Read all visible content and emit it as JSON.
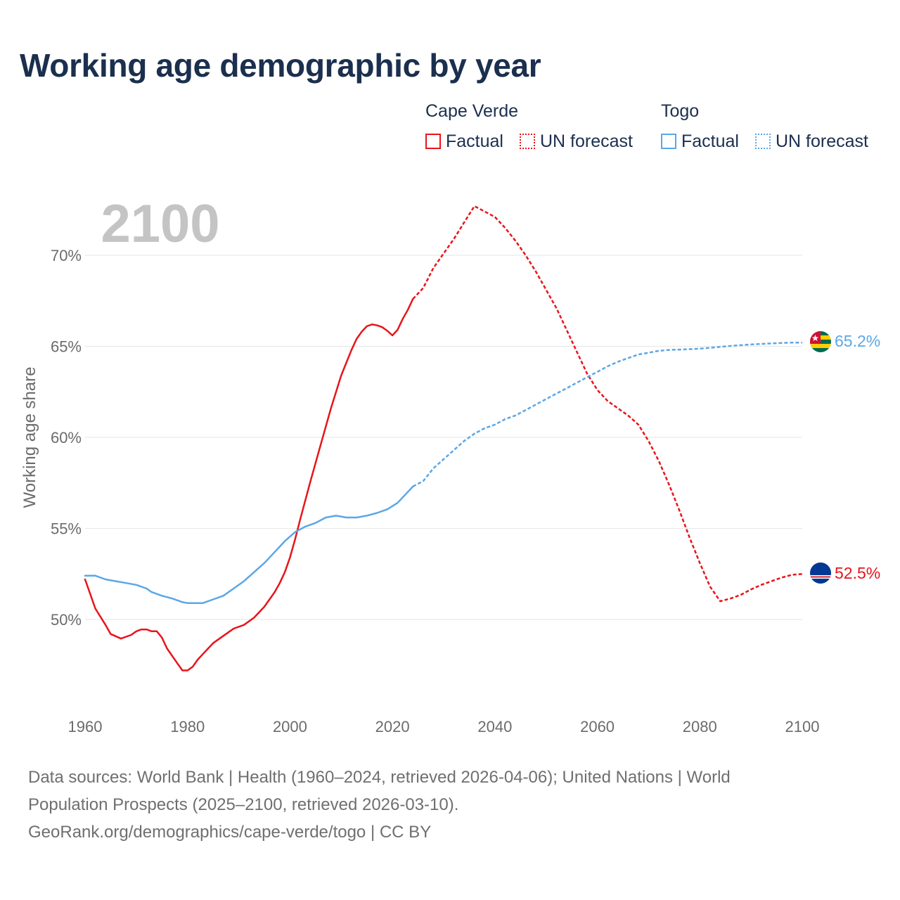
{
  "title": "Working age demographic by year",
  "legend": {
    "groups": [
      {
        "name": "Cape Verde",
        "color": "#e8141b",
        "items": [
          {
            "label": "Factual",
            "style": "solid"
          },
          {
            "label": "UN forecast",
            "style": "dotted"
          }
        ]
      },
      {
        "name": "Togo",
        "color": "#5ba7e6",
        "items": [
          {
            "label": "Factual",
            "style": "solid"
          },
          {
            "label": "UN forecast",
            "style": "dotted"
          }
        ]
      }
    ]
  },
  "chart_data": {
    "type": "line",
    "year_label": "2100",
    "ylabel": "Working age share",
    "xlim": [
      1960,
      2100
    ],
    "ylim": [
      45,
      74
    ],
    "x_ticks": [
      "1960",
      "1980",
      "2000",
      "2020",
      "2040",
      "2060",
      "2080",
      "2100"
    ],
    "y_ticks": [
      {
        "value": 50,
        "label": "50%"
      },
      {
        "value": 55,
        "label": "55%"
      },
      {
        "value": 60,
        "label": "60%"
      },
      {
        "value": 65,
        "label": "65%"
      },
      {
        "value": 70,
        "label": "70%"
      }
    ],
    "forecast_start": 2024,
    "series": [
      {
        "name": "Cape Verde",
        "color": "#e8141b",
        "flag": "cape-verde-flag-icon",
        "end_label": "52.5%",
        "points": [
          [
            1960,
            52.2
          ],
          [
            1962,
            50.6
          ],
          [
            1964,
            49.7
          ],
          [
            1965,
            49.2
          ],
          [
            1967,
            48.95
          ],
          [
            1969,
            49.15
          ],
          [
            1970,
            49.35
          ],
          [
            1971,
            49.45
          ],
          [
            1972,
            49.45
          ],
          [
            1973,
            49.35
          ],
          [
            1974,
            49.35
          ],
          [
            1975,
            49.0
          ],
          [
            1976,
            48.4
          ],
          [
            1978,
            47.6
          ],
          [
            1979,
            47.2
          ],
          [
            1980,
            47.2
          ],
          [
            1981,
            47.4
          ],
          [
            1982,
            47.8
          ],
          [
            1983,
            48.1
          ],
          [
            1984,
            48.4
          ],
          [
            1985,
            48.7
          ],
          [
            1987,
            49.1
          ],
          [
            1989,
            49.5
          ],
          [
            1991,
            49.7
          ],
          [
            1993,
            50.1
          ],
          [
            1995,
            50.7
          ],
          [
            1997,
            51.5
          ],
          [
            1998,
            52.0
          ],
          [
            1999,
            52.6
          ],
          [
            2000,
            53.4
          ],
          [
            2001,
            54.4
          ],
          [
            2002,
            55.5
          ],
          [
            2004,
            57.6
          ],
          [
            2006,
            59.6
          ],
          [
            2008,
            61.6
          ],
          [
            2010,
            63.4
          ],
          [
            2012,
            64.8
          ],
          [
            2013,
            65.4
          ],
          [
            2014,
            65.8
          ],
          [
            2015,
            66.1
          ],
          [
            2016,
            66.2
          ],
          [
            2017,
            66.15
          ],
          [
            2018,
            66.05
          ],
          [
            2019,
            65.85
          ],
          [
            2020,
            65.6
          ],
          [
            2021,
            65.9
          ],
          [
            2022,
            66.5
          ],
          [
            2023,
            67.0
          ],
          [
            2024,
            67.6
          ],
          [
            2026,
            68.2
          ],
          [
            2028,
            69.3
          ],
          [
            2030,
            70.1
          ],
          [
            2032,
            70.9
          ],
          [
            2034,
            71.8
          ],
          [
            2036,
            72.7
          ],
          [
            2038,
            72.4
          ],
          [
            2040,
            72.1
          ],
          [
            2042,
            71.5
          ],
          [
            2044,
            70.8
          ],
          [
            2046,
            70.0
          ],
          [
            2048,
            69.1
          ],
          [
            2050,
            68.1
          ],
          [
            2052,
            67.1
          ],
          [
            2054,
            65.9
          ],
          [
            2056,
            64.7
          ],
          [
            2058,
            63.5
          ],
          [
            2060,
            62.6
          ],
          [
            2062,
            62.0
          ],
          [
            2064,
            61.6
          ],
          [
            2066,
            61.2
          ],
          [
            2068,
            60.7
          ],
          [
            2070,
            59.8
          ],
          [
            2072,
            58.7
          ],
          [
            2074,
            57.4
          ],
          [
            2076,
            56.0
          ],
          [
            2078,
            54.5
          ],
          [
            2080,
            53.1
          ],
          [
            2082,
            51.8
          ],
          [
            2084,
            51.0
          ],
          [
            2086,
            51.15
          ],
          [
            2088,
            51.35
          ],
          [
            2090,
            51.65
          ],
          [
            2092,
            51.9
          ],
          [
            2094,
            52.1
          ],
          [
            2096,
            52.3
          ],
          [
            2098,
            52.45
          ],
          [
            2100,
            52.5
          ]
        ]
      },
      {
        "name": "Togo",
        "color": "#5ba7e6",
        "flag": "togo-flag-icon",
        "end_label": "65.2%",
        "points": [
          [
            1960,
            52.4
          ],
          [
            1962,
            52.4
          ],
          [
            1964,
            52.2
          ],
          [
            1966,
            52.1
          ],
          [
            1968,
            52.0
          ],
          [
            1970,
            51.9
          ],
          [
            1972,
            51.7
          ],
          [
            1973,
            51.5
          ],
          [
            1975,
            51.3
          ],
          [
            1977,
            51.15
          ],
          [
            1979,
            50.95
          ],
          [
            1980,
            50.9
          ],
          [
            1982,
            50.9
          ],
          [
            1983,
            50.9
          ],
          [
            1985,
            51.1
          ],
          [
            1987,
            51.3
          ],
          [
            1989,
            51.7
          ],
          [
            1991,
            52.1
          ],
          [
            1993,
            52.6
          ],
          [
            1995,
            53.1
          ],
          [
            1997,
            53.7
          ],
          [
            1999,
            54.3
          ],
          [
            2001,
            54.8
          ],
          [
            2003,
            55.1
          ],
          [
            2005,
            55.3
          ],
          [
            2007,
            55.6
          ],
          [
            2009,
            55.7
          ],
          [
            2011,
            55.6
          ],
          [
            2013,
            55.6
          ],
          [
            2015,
            55.7
          ],
          [
            2017,
            55.85
          ],
          [
            2019,
            56.05
          ],
          [
            2021,
            56.4
          ],
          [
            2023,
            57.0
          ],
          [
            2024,
            57.3
          ],
          [
            2026,
            57.6
          ],
          [
            2028,
            58.3
          ],
          [
            2030,
            58.8
          ],
          [
            2032,
            59.3
          ],
          [
            2034,
            59.8
          ],
          [
            2036,
            60.2
          ],
          [
            2038,
            60.5
          ],
          [
            2040,
            60.7
          ],
          [
            2042,
            61.0
          ],
          [
            2044,
            61.2
          ],
          [
            2046,
            61.5
          ],
          [
            2048,
            61.8
          ],
          [
            2050,
            62.1
          ],
          [
            2052,
            62.4
          ],
          [
            2054,
            62.7
          ],
          [
            2056,
            63.0
          ],
          [
            2058,
            63.3
          ],
          [
            2060,
            63.6
          ],
          [
            2062,
            63.9
          ],
          [
            2064,
            64.15
          ],
          [
            2066,
            64.35
          ],
          [
            2068,
            64.55
          ],
          [
            2070,
            64.65
          ],
          [
            2072,
            64.75
          ],
          [
            2074,
            64.8
          ],
          [
            2076,
            64.82
          ],
          [
            2078,
            64.84
          ],
          [
            2080,
            64.87
          ],
          [
            2082,
            64.92
          ],
          [
            2084,
            64.97
          ],
          [
            2086,
            65.02
          ],
          [
            2088,
            65.06
          ],
          [
            2090,
            65.1
          ],
          [
            2092,
            65.13
          ],
          [
            2094,
            65.16
          ],
          [
            2096,
            65.18
          ],
          [
            2098,
            65.2
          ],
          [
            2100,
            65.2
          ]
        ]
      }
    ]
  },
  "footer": {
    "line1": "Data sources: World Bank | Health (1960–2024, retrieved 2026-04-06); United Nations | World",
    "line2": "Population Prospects (2025–2100, retrieved 2026-03-10).",
    "line3": "GeoRank.org/demographics/cape-verde/togo | CC BY"
  }
}
